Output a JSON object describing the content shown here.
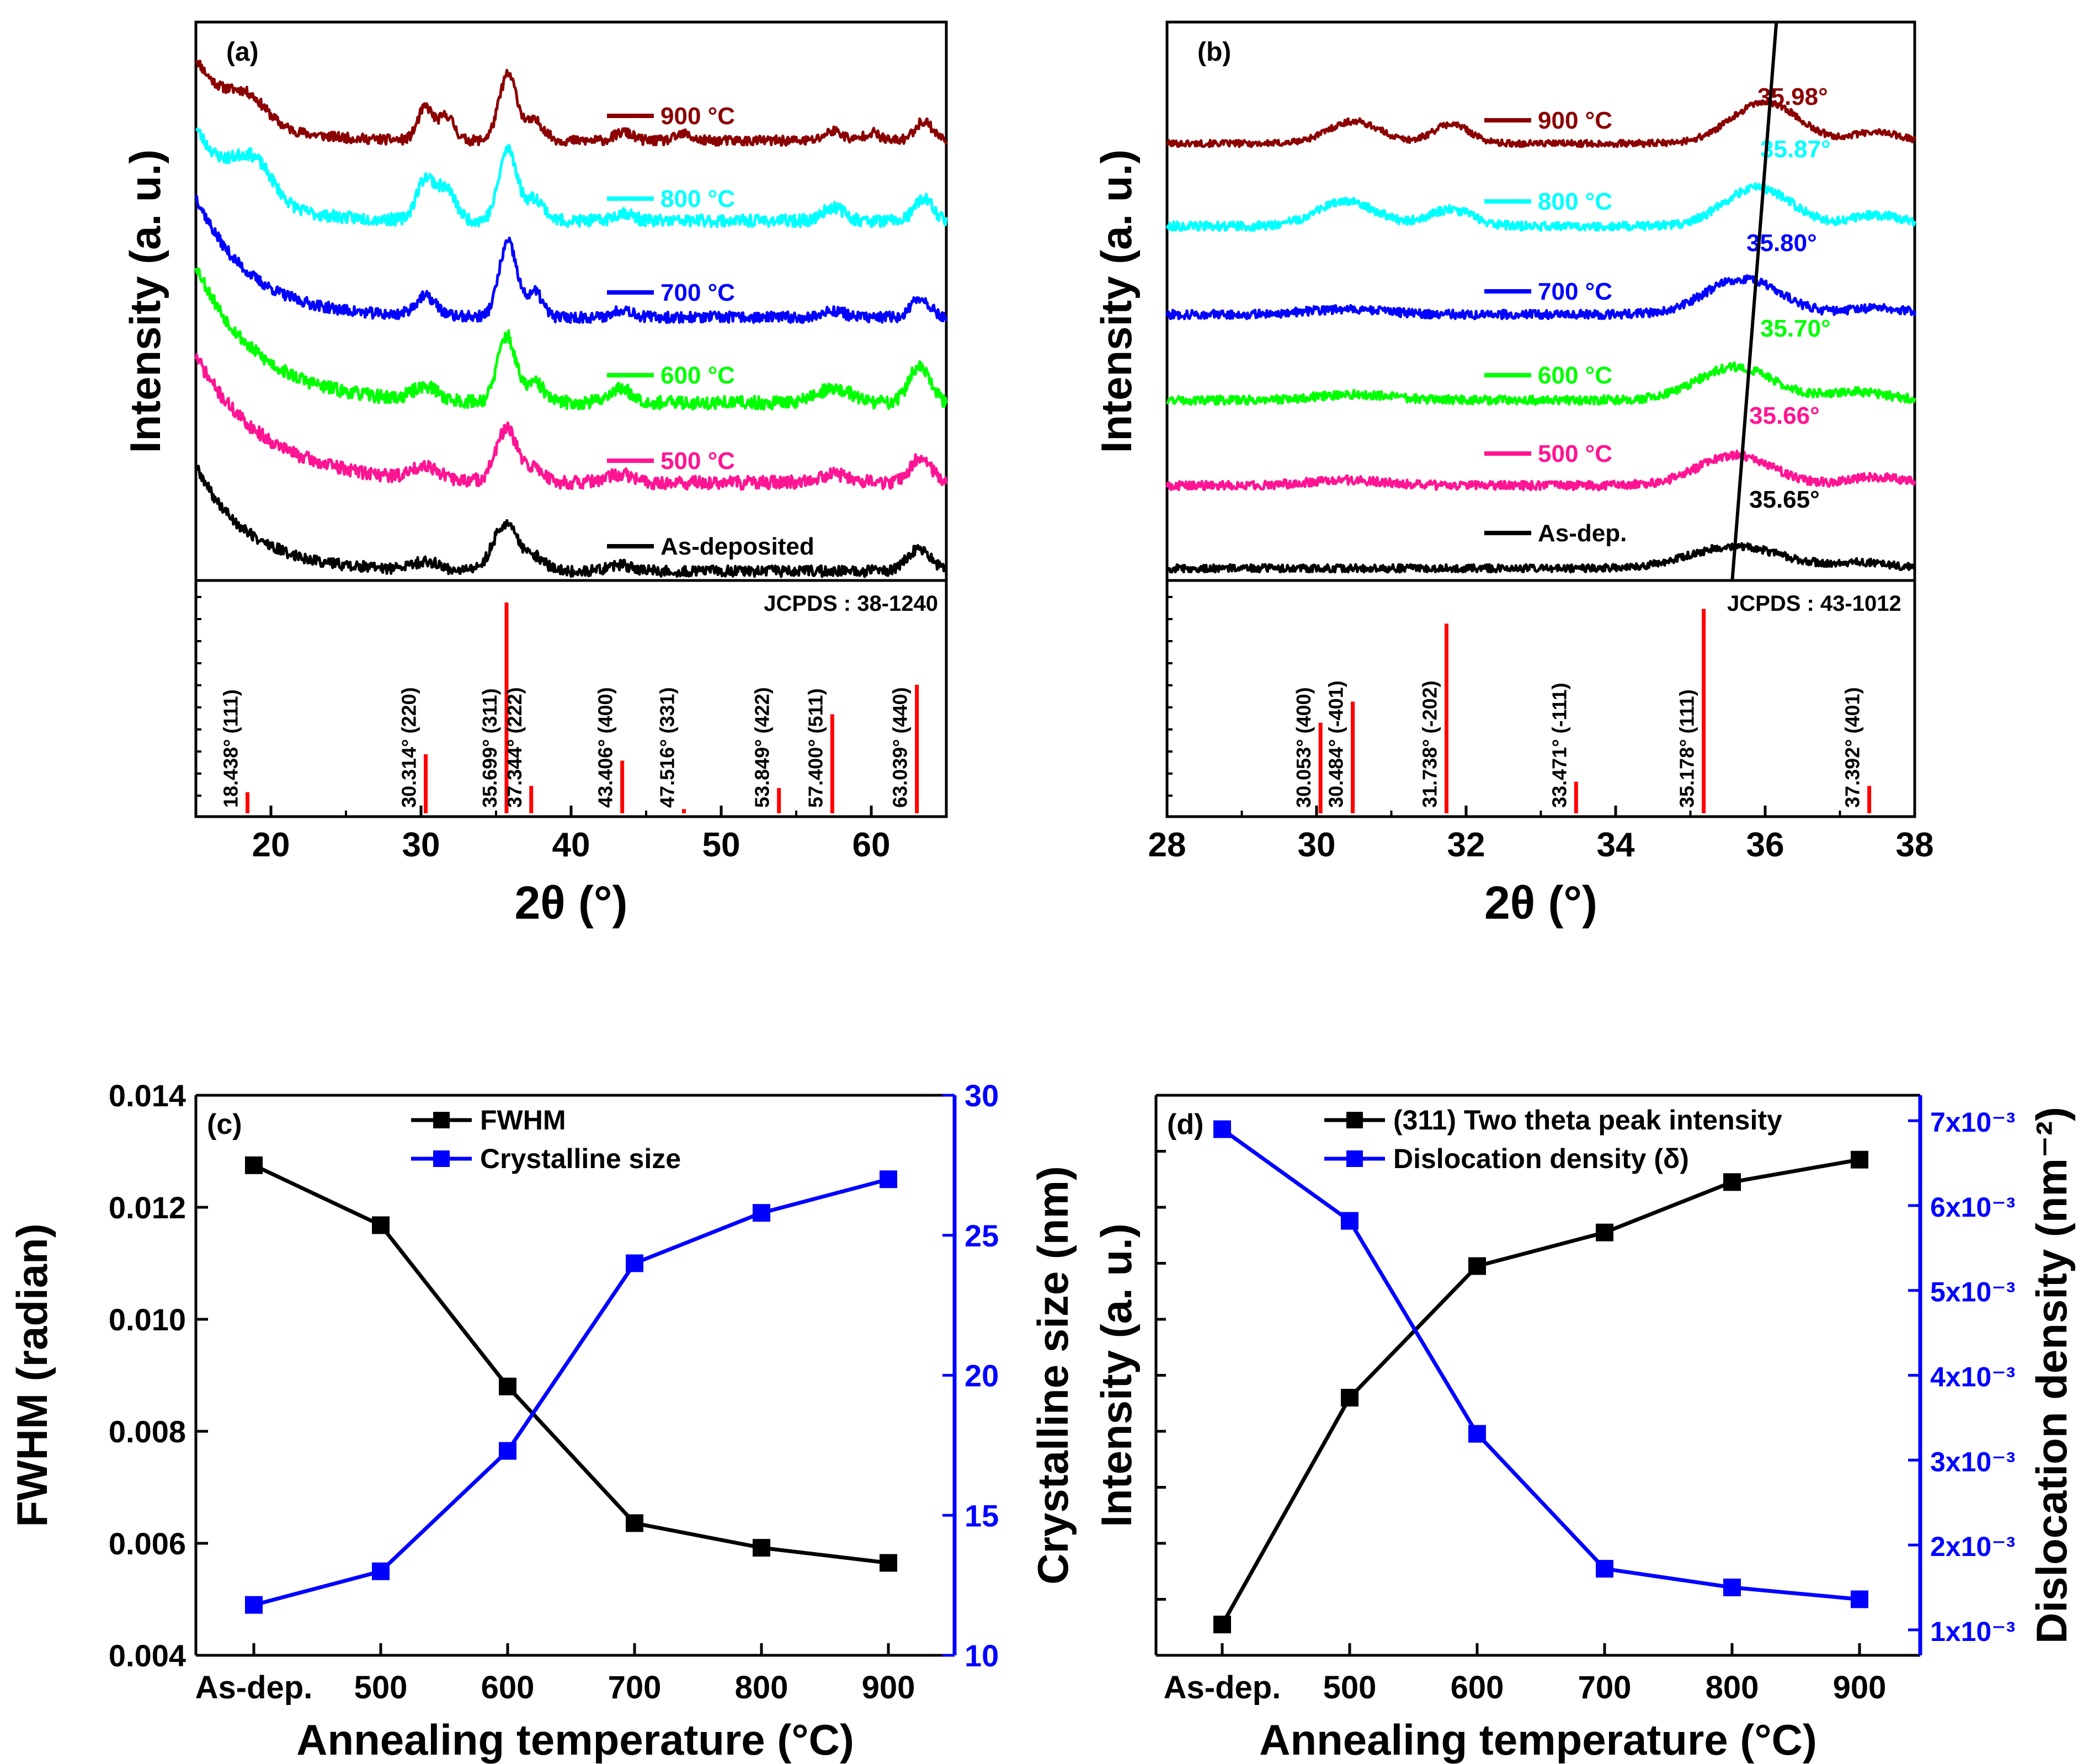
{
  "chart_data": [
    {
      "panel": "a",
      "type": "line",
      "panel_label": "(a)",
      "xlabel": "2θ (°)",
      "ylabel": "Intensity (a. u.)",
      "xlim": [
        15,
        65
      ],
      "xticks": [
        20,
        30,
        40,
        50,
        60
      ],
      "series": [
        {
          "name": "900 °C",
          "color": "#8b0000",
          "peaks": [
            [
              18.5,
              40,
              1.2
            ],
            [
              30.3,
              60,
              0.5
            ],
            [
              31.7,
              45,
              0.5
            ],
            [
              35.8,
              120,
              0.6
            ],
            [
              37.6,
              35,
              0.6
            ],
            [
              43.5,
              15,
              0.6
            ],
            [
              47.5,
              12,
              0.5
            ],
            [
              57.5,
              18,
              0.6
            ],
            [
              60.0,
              15,
              0.5
            ],
            [
              63.5,
              35,
              0.6
            ]
          ],
          "decay": [
            150,
            3.0
          ],
          "noise": 9,
          "seed": 11
        },
        {
          "name": "800 °C",
          "color": "#00ffff",
          "peaks": [
            [
              18.8,
              70,
              1.3
            ],
            [
              30.3,
              75,
              0.6
            ],
            [
              31.7,
              55,
              0.6
            ],
            [
              35.8,
              130,
              0.6
            ],
            [
              37.6,
              40,
              0.6
            ],
            [
              43.5,
              15,
              0.6
            ],
            [
              57.5,
              25,
              0.7
            ],
            [
              63.5,
              40,
              0.6
            ]
          ],
          "decay": [
            170,
            3.0
          ],
          "noise": 11,
          "seed": 23
        },
        {
          "name": "700 °C",
          "color": "#0000ff",
          "peaks": [
            [
              30.3,
              35,
              0.7
            ],
            [
              35.8,
              135,
              0.6
            ],
            [
              37.6,
              45,
              0.5
            ],
            [
              43.5,
              15,
              0.6
            ],
            [
              57.5,
              12,
              0.7
            ],
            [
              63.3,
              35,
              0.6
            ]
          ],
          "decay": [
            220,
            3.5
          ],
          "noise": 10,
          "seed": 37
        },
        {
          "name": "600 °C",
          "color": "#00ff00",
          "peaks": [
            [
              30.3,
              25,
              0.8
            ],
            [
              35.7,
              120,
              0.6
            ],
            [
              37.6,
              35,
              0.6
            ],
            [
              43.3,
              25,
              0.8
            ],
            [
              57.5,
              25,
              1.2
            ],
            [
              63.2,
              65,
              0.7
            ]
          ],
          "decay": [
            250,
            4.0
          ],
          "noise": 12,
          "seed": 53
        },
        {
          "name": "500 °C",
          "color": "#ff1493",
          "peaks": [
            [
              30.3,
              25,
              0.8
            ],
            [
              35.7,
              95,
              0.7
            ],
            [
              37.6,
              25,
              0.6
            ],
            [
              43.3,
              15,
              0.8
            ],
            [
              57.5,
              15,
              1.2
            ],
            [
              63.3,
              45,
              0.7
            ]
          ],
          "decay": [
            230,
            4.5
          ],
          "noise": 12,
          "seed": 71
        },
        {
          "name": "As-deposited",
          "color": "#000000",
          "peaks": [
            [
              30.3,
              15,
              0.9
            ],
            [
              35.6,
              85,
              0.8
            ],
            [
              37.5,
              25,
              0.7
            ],
            [
              43.3,
              10,
              0.8
            ],
            [
              63.2,
              40,
              0.8
            ]
          ],
          "decay": [
            190,
            3.5
          ],
          "noise": 10,
          "seed": 89
        }
      ],
      "reference": {
        "label": "JCPDS : 38-1240",
        "sticks": [
          {
            "x": 18.438,
            "h": 0.1,
            "label": "18.438° (111)"
          },
          {
            "x": 30.314,
            "h": 0.28,
            "label": "30.314° (220)"
          },
          {
            "x": 35.699,
            "h": 1.0,
            "label": "35.699° (311)"
          },
          {
            "x": 37.344,
            "h": 0.13,
            "label": "37.344° (222)"
          },
          {
            "x": 43.406,
            "h": 0.25,
            "label": "43.406° (400)"
          },
          {
            "x": 47.516,
            "h": 0.02,
            "label": "47.516° (331)"
          },
          {
            "x": 53.849,
            "h": 0.12,
            "label": "53.849° (422)"
          },
          {
            "x": 57.4,
            "h": 0.47,
            "label": "57.400° (511)"
          },
          {
            "x": 63.039,
            "h": 0.61,
            "label": "63.039° (440)"
          }
        ]
      }
    },
    {
      "panel": "b",
      "type": "line",
      "panel_label": "(b)",
      "xlabel": "2θ (°)",
      "ylabel": "Intensity (a. u.)",
      "xlim": [
        28,
        38
      ],
      "xticks": [
        28,
        30,
        32,
        34,
        36,
        38
      ],
      "series": [
        {
          "name": "900 °C",
          "color": "#8b0000",
          "peak_label": "35.98°",
          "peak_pos": 35.98,
          "peaks": [
            [
              30.5,
              40,
              0.35
            ],
            [
              31.8,
              35,
              0.25
            ],
            [
              36.0,
              75,
              0.45
            ],
            [
              37.5,
              20,
              0.35
            ]
          ],
          "noise": 6,
          "seed": 101
        },
        {
          "name": "800 °C",
          "color": "#00ffff",
          "peak_label": "35.87°",
          "peak_pos": 35.87,
          "peaks": [
            [
              30.4,
              45,
              0.4
            ],
            [
              31.8,
              30,
              0.3
            ],
            [
              35.9,
              70,
              0.45
            ],
            [
              37.5,
              20,
              0.35
            ]
          ],
          "noise": 8,
          "seed": 113
        },
        {
          "name": "700 °C",
          "color": "#0000ff",
          "peak_label": "35.80°",
          "peak_pos": 35.8,
          "peaks": [
            [
              30.4,
              10,
              0.5
            ],
            [
              35.7,
              65,
              0.5
            ],
            [
              37.5,
              12,
              0.35
            ]
          ],
          "noise": 8,
          "seed": 127
        },
        {
          "name": "600 °C",
          "color": "#00ff00",
          "peak_label": "35.70°",
          "peak_pos": 35.7,
          "peaks": [
            [
              30.5,
              10,
              0.5
            ],
            [
              35.6,
              60,
              0.5
            ],
            [
              37.2,
              15,
              0.4
            ]
          ],
          "noise": 8,
          "seed": 131
        },
        {
          "name": "500 °C",
          "color": "#ff1493",
          "peak_label": "35.66°",
          "peak_pos": 35.66,
          "peaks": [
            [
              30.4,
              10,
              0.5
            ],
            [
              35.6,
              55,
              0.5
            ],
            [
              37.5,
              15,
              0.4
            ]
          ],
          "noise": 8,
          "seed": 149
        },
        {
          "name": "As-dep.",
          "color": "#000000",
          "peak_label": "35.65°",
          "peak_pos": 35.65,
          "peaks": [
            [
              35.6,
              40,
              0.6
            ],
            [
              37.3,
              10,
              0.4
            ]
          ],
          "noise": 7,
          "seed": 157
        }
      ],
      "reference": {
        "label": "JCPDS : 43-1012",
        "sticks": [
          {
            "x": 30.053,
            "h": 0.43,
            "label": "30.053° (400)"
          },
          {
            "x": 30.484,
            "h": 0.53,
            "label": "30.484° (-401)"
          },
          {
            "x": 31.738,
            "h": 0.9,
            "label": "31.738° (-202)"
          },
          {
            "x": 33.471,
            "h": 0.15,
            "label": "33.471° (-111)"
          },
          {
            "x": 35.178,
            "h": 0.97,
            "label": "35.178° (111)"
          },
          {
            "x": 37.392,
            "h": 0.13,
            "label": "37.392° (401)"
          }
        ]
      }
    },
    {
      "panel": "c",
      "type": "line",
      "panel_label": "(c)",
      "xlabel": "Annealing temperature (°C)",
      "categories": [
        "As-dep.",
        "500",
        "600",
        "700",
        "800",
        "900"
      ],
      "y_left": {
        "label": "FWHM (radian)",
        "lim": [
          0.004,
          0.014
        ],
        "ticks": [
          "0.004",
          "0.006",
          "0.008",
          "0.010",
          "0.012",
          "0.014"
        ],
        "color": "#000000"
      },
      "y_right": {
        "label": "Crystalline size (nm)",
        "lim": [
          10,
          30
        ],
        "ticks": [
          "10",
          "15",
          "20",
          "25",
          "30"
        ],
        "color": "#0000ff"
      },
      "series": [
        {
          "name": "FWHM",
          "axis": "left",
          "color": "#000000",
          "values": [
            0.01275,
            0.01168,
            0.0088,
            0.00636,
            0.00592,
            0.00565
          ]
        },
        {
          "name": "Crystalline size",
          "axis": "right",
          "color": "#0000ff",
          "values": [
            11.8,
            13.0,
            17.3,
            24.0,
            25.8,
            27.0
          ]
        }
      ]
    },
    {
      "panel": "d",
      "type": "line",
      "panel_label": "(d)",
      "xlabel": "Annealing temperature (°C)",
      "categories": [
        "As-dep.",
        "500",
        "600",
        "700",
        "800",
        "900"
      ],
      "y_left": {
        "label": "Intensity (a. u.)",
        "lim": [
          0,
          10
        ],
        "ticks": [],
        "color": "#000000"
      },
      "y_right": {
        "label": "Dislocation density (nm⁻²)",
        "lim": [
          0.0007,
          0.0073
        ],
        "ticks": [
          "1x10⁻³",
          "2x10⁻³",
          "3x10⁻³",
          "4x10⁻³",
          "5x10⁻³",
          "6x10⁻³",
          "7x10⁻³"
        ],
        "color": "#0000ff"
      },
      "series": [
        {
          "name": "(311) Two theta peak intensity",
          "axis": "left",
          "color": "#000000",
          "values": [
            0.55,
            4.6,
            6.95,
            7.55,
            8.45,
            8.85
          ]
        },
        {
          "name": "Dislocation density (δ)",
          "axis": "right",
          "color": "#0000ff",
          "values": [
            0.0069,
            0.00582,
            0.00331,
            0.00172,
            0.0015,
            0.00136
          ]
        }
      ]
    }
  ]
}
